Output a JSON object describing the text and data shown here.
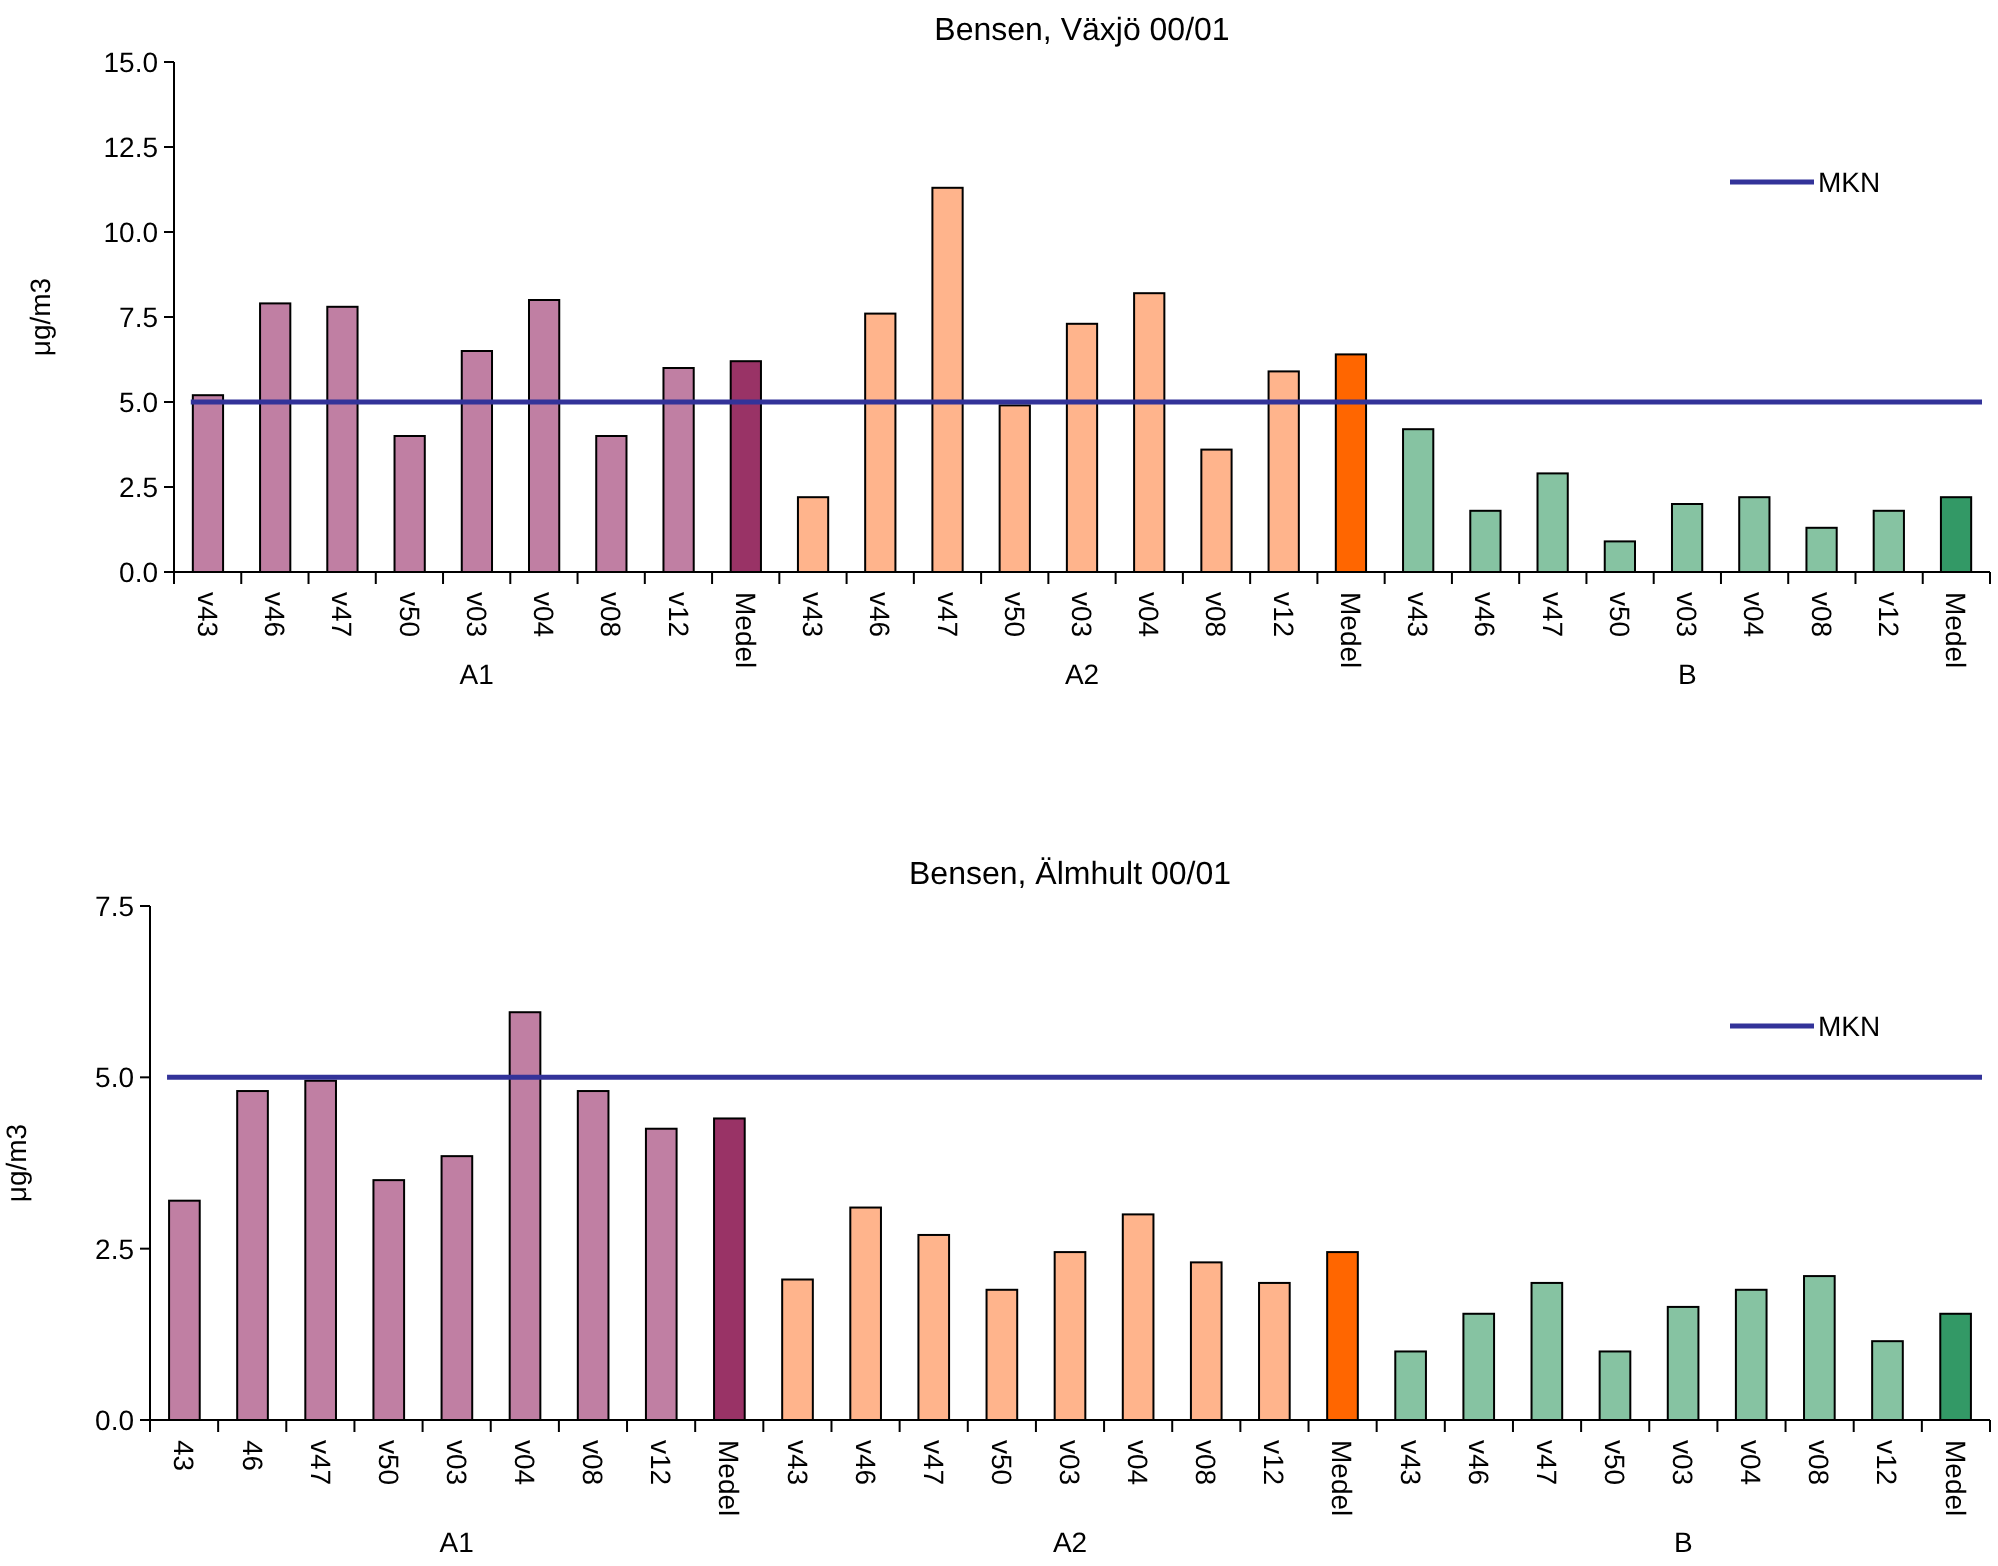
{
  "chart_data": [
    {
      "type": "bar",
      "title": "Bensen, Växjö 00/01",
      "ylabel": "μg/m3",
      "categories": [
        "v43",
        "v46",
        "v47",
        "v50",
        "v03",
        "v04",
        "v08",
        "v12",
        "Medel",
        "v43",
        "v46",
        "v47",
        "v50",
        "v03",
        "v04",
        "v08",
        "v12",
        "Medel",
        "v43",
        "v46",
        "v47",
        "v50",
        "v03",
        "v04",
        "v08",
        "v12",
        "Medel"
      ],
      "values": [
        5.2,
        7.9,
        7.8,
        4.0,
        6.5,
        8.0,
        4.0,
        6.0,
        6.2,
        2.2,
        7.6,
        11.3,
        4.9,
        7.3,
        8.2,
        3.6,
        5.9,
        6.4,
        4.2,
        1.8,
        2.9,
        0.9,
        2.0,
        2.2,
        1.3,
        1.8,
        2.2
      ],
      "colors": [
        "#c07fa3",
        "#c07fa3",
        "#c07fa3",
        "#c07fa3",
        "#c07fa3",
        "#c07fa3",
        "#c07fa3",
        "#c07fa3",
        "#993366",
        "#ffb48c",
        "#ffb48c",
        "#ffb48c",
        "#ffb48c",
        "#ffb48c",
        "#ffb48c",
        "#ffb48c",
        "#ffb48c",
        "#ff6600",
        "#86c3a2",
        "#86c3a2",
        "#86c3a2",
        "#86c3a2",
        "#86c3a2",
        "#86c3a2",
        "#86c3a2",
        "#86c3a2",
        "#339966"
      ],
      "ylim": [
        0,
        15
      ],
      "yticks": [
        {
          "value": 0,
          "label": "0.0"
        },
        {
          "value": 2.5,
          "label": "2.5"
        },
        {
          "value": 5,
          "label": "5.0"
        },
        {
          "value": 7.5,
          "label": "7.5"
        },
        {
          "value": 10,
          "label": "10.0"
        },
        {
          "value": 12.5,
          "label": "12.5"
        },
        {
          "value": 15,
          "label": "15.0"
        }
      ],
      "ref_lines": [
        {
          "axis": "y",
          "value": 5,
          "label": "MKN",
          "color": "#333399"
        }
      ],
      "annotations": [
        "A1",
        "A2",
        "B"
      ],
      "legend": "top right",
      "grid": false
    },
    {
      "type": "bar",
      "title": "Bensen, Älmhult 00/01",
      "ylabel": "μg/m3",
      "categories": [
        "43",
        "46",
        "v47",
        "v50",
        "v03",
        "v04",
        "v08",
        "v12",
        "Medel",
        "v43",
        "v46",
        "v47",
        "v50",
        "v03",
        "v04",
        "v08",
        "v12",
        "Medel",
        "v43",
        "v46",
        "v47",
        "v50",
        "v03",
        "v04",
        "v08",
        "v12",
        "Medel"
      ],
      "values": [
        3.2,
        4.8,
        4.95,
        3.5,
        3.85,
        5.95,
        4.8,
        4.25,
        4.4,
        2.05,
        3.1,
        2.7,
        1.9,
        2.45,
        3.0,
        2.3,
        2.0,
        2.45,
        1.0,
        1.55,
        2.0,
        1.0,
        1.65,
        1.9,
        2.1,
        1.15,
        1.55
      ],
      "colors": [
        "#c07fa3",
        "#c07fa3",
        "#c07fa3",
        "#c07fa3",
        "#c07fa3",
        "#c07fa3",
        "#c07fa3",
        "#c07fa3",
        "#993366",
        "#ffb48c",
        "#ffb48c",
        "#ffb48c",
        "#ffb48c",
        "#ffb48c",
        "#ffb48c",
        "#ffb48c",
        "#ffb48c",
        "#ff6600",
        "#86c3a2",
        "#86c3a2",
        "#86c3a2",
        "#86c3a2",
        "#86c3a2",
        "#86c3a2",
        "#86c3a2",
        "#86c3a2",
        "#339966"
      ],
      "ylim": [
        0,
        7.5
      ],
      "yticks": [
        {
          "value": 0,
          "label": "0.0"
        },
        {
          "value": 2.5,
          "label": "2.5"
        },
        {
          "value": 5,
          "label": "5.0"
        },
        {
          "value": 7.5,
          "label": "7.5"
        }
      ],
      "ref_lines": [
        {
          "axis": "y",
          "value": 5,
          "label": "MKN",
          "color": "#333399"
        }
      ],
      "annotations": [
        "A1",
        "A2",
        "B"
      ],
      "legend": "top right",
      "grid": false
    }
  ]
}
